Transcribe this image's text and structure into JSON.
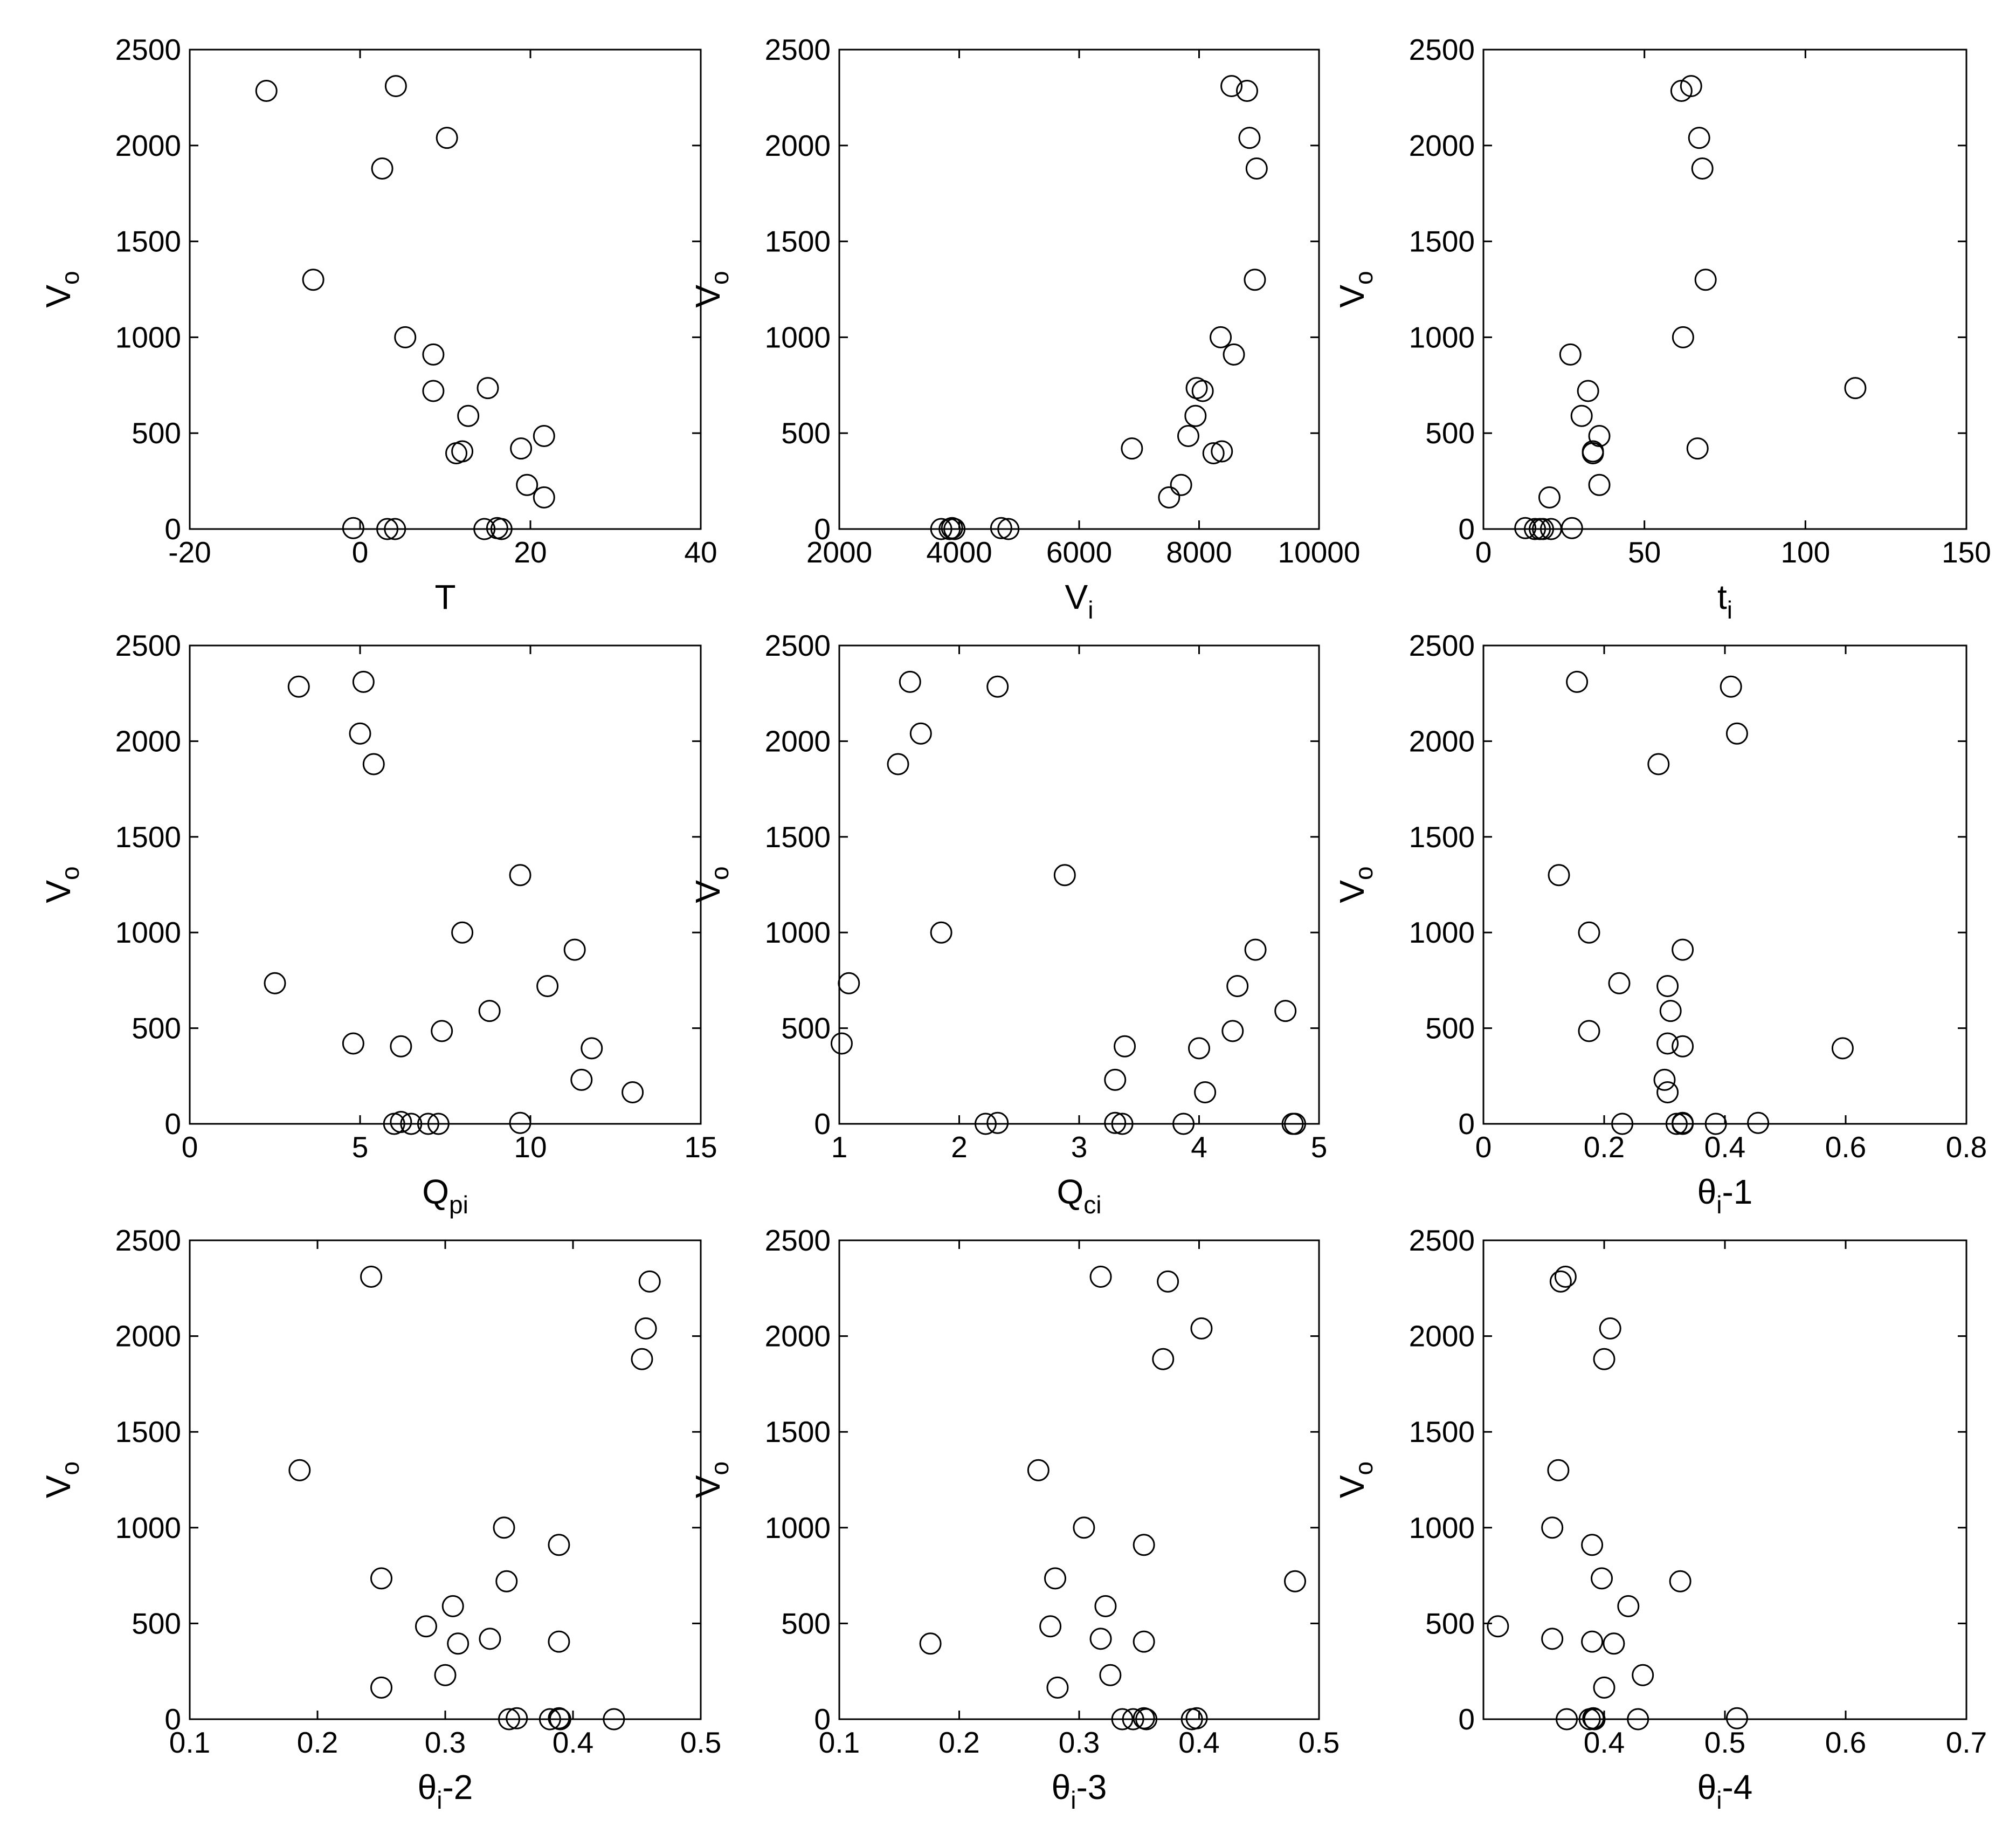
{
  "chart_data": [
    {
      "type": "scatter",
      "xlabel": "T",
      "xlabel_sub": "",
      "xlabel_suffix": "",
      "ylabel": "V",
      "ylabel_sub": "o",
      "xlim": [
        -20,
        40
      ],
      "xticks": [
        "-20",
        "0",
        "20",
        "40"
      ],
      "ylim": [
        0,
        2500
      ],
      "yticks": [
        "0",
        "500",
        "1000",
        "1500",
        "2000",
        "2500"
      ],
      "marker": "open-circle",
      "grid": false,
      "points": [
        [
          -11,
          2285
        ],
        [
          4.2,
          2310
        ],
        [
          10.2,
          2040
        ],
        [
          2.6,
          1880
        ],
        [
          -5.5,
          1300
        ],
        [
          5.3,
          1000
        ],
        [
          8.6,
          910
        ],
        [
          8.6,
          720
        ],
        [
          15,
          735
        ],
        [
          12.7,
          590
        ],
        [
          11.3,
          395
        ],
        [
          12,
          405
        ],
        [
          18.9,
          420
        ],
        [
          21.6,
          485
        ],
        [
          19.6,
          230
        ],
        [
          21.6,
          165
        ],
        [
          -0.8,
          5
        ],
        [
          3.2,
          0
        ],
        [
          4.1,
          0
        ],
        [
          14.6,
          0
        ],
        [
          16.1,
          5
        ],
        [
          16.6,
          0
        ]
      ]
    },
    {
      "type": "scatter",
      "xlabel": "V",
      "xlabel_sub": "i",
      "xlabel_suffix": "",
      "ylabel": "V",
      "ylabel_sub": "o",
      "xlim": [
        2000,
        10000
      ],
      "xticks": [
        "2000",
        "4000",
        "6000",
        "8000",
        "10000"
      ],
      "ylim": [
        0,
        2500
      ],
      "yticks": [
        "0",
        "500",
        "1000",
        "1500",
        "2000",
        "2500"
      ],
      "marker": "open-circle",
      "grid": false,
      "points": [
        [
          8540,
          2310
        ],
        [
          8800,
          2285
        ],
        [
          8840,
          2040
        ],
        [
          8960,
          1880
        ],
        [
          8930,
          1300
        ],
        [
          8360,
          1000
        ],
        [
          8580,
          910
        ],
        [
          7960,
          735
        ],
        [
          8060,
          720
        ],
        [
          7940,
          590
        ],
        [
          7820,
          485
        ],
        [
          6880,
          420
        ],
        [
          8380,
          405
        ],
        [
          8240,
          395
        ],
        [
          7700,
          230
        ],
        [
          7500,
          165
        ],
        [
          3700,
          0
        ],
        [
          3840,
          0
        ],
        [
          3880,
          5
        ],
        [
          3920,
          0
        ],
        [
          4700,
          5
        ],
        [
          4820,
          0
        ]
      ]
    },
    {
      "type": "scatter",
      "xlabel": "t",
      "xlabel_sub": "i",
      "xlabel_suffix": "",
      "ylabel": "V",
      "ylabel_sub": "o",
      "xlim": [
        0,
        150
      ],
      "xticks": [
        "0",
        "50",
        "100",
        "150"
      ],
      "ylim": [
        0,
        2500
      ],
      "yticks": [
        "0",
        "500",
        "1000",
        "1500",
        "2000",
        "2500"
      ],
      "marker": "open-circle",
      "grid": false,
      "points": [
        [
          64.5,
          2310
        ],
        [
          61.5,
          2285
        ],
        [
          67,
          2040
        ],
        [
          68,
          1880
        ],
        [
          69,
          1300
        ],
        [
          62,
          1000
        ],
        [
          27,
          910
        ],
        [
          32.5,
          720
        ],
        [
          115.5,
          735
        ],
        [
          30.5,
          590
        ],
        [
          36,
          485
        ],
        [
          66.5,
          420
        ],
        [
          34,
          405
        ],
        [
          34,
          395
        ],
        [
          36,
          230
        ],
        [
          20.5,
          165
        ],
        [
          13,
          5
        ],
        [
          16,
          0
        ],
        [
          17.5,
          0
        ],
        [
          18.5,
          0
        ],
        [
          21,
          0
        ],
        [
          27.5,
          5
        ]
      ]
    },
    {
      "type": "scatter",
      "xlabel": "Q",
      "xlabel_sub": "pi",
      "xlabel_suffix": "",
      "ylabel": "V",
      "ylabel_sub": "o",
      "xlim": [
        0,
        15
      ],
      "xticks": [
        "0",
        "5",
        "10",
        "15"
      ],
      "ylim": [
        0,
        2500
      ],
      "yticks": [
        "0",
        "500",
        "1000",
        "1500",
        "2000",
        "2500"
      ],
      "marker": "open-circle",
      "grid": false,
      "points": [
        [
          3.2,
          2285
        ],
        [
          5.1,
          2310
        ],
        [
          5,
          2040
        ],
        [
          5.4,
          1880
        ],
        [
          9.7,
          1300
        ],
        [
          8,
          1000
        ],
        [
          11.3,
          910
        ],
        [
          10.5,
          720
        ],
        [
          2.5,
          735
        ],
        [
          8.8,
          590
        ],
        [
          7.4,
          485
        ],
        [
          4.8,
          420
        ],
        [
          6.2,
          405
        ],
        [
          11.8,
          395
        ],
        [
          11.5,
          230
        ],
        [
          13,
          165
        ],
        [
          6,
          0
        ],
        [
          6.2,
          10
        ],
        [
          6.5,
          0
        ],
        [
          7,
          0
        ],
        [
          7.3,
          0
        ],
        [
          9.7,
          5
        ]
      ]
    },
    {
      "type": "scatter",
      "xlabel": "Q",
      "xlabel_sub": "ci",
      "xlabel_suffix": "",
      "ylabel": "V",
      "ylabel_sub": "o",
      "xlim": [
        1,
        5
      ],
      "xticks": [
        "1",
        "2",
        "3",
        "4",
        "5"
      ],
      "ylim": [
        0,
        2500
      ],
      "yticks": [
        "0",
        "500",
        "1000",
        "1500",
        "2000",
        "2500"
      ],
      "marker": "open-circle",
      "grid": false,
      "points": [
        [
          1.59,
          2310
        ],
        [
          2.32,
          2285
        ],
        [
          1.68,
          2040
        ],
        [
          1.49,
          1880
        ],
        [
          2.88,
          1300
        ],
        [
          1.85,
          1000
        ],
        [
          4.47,
          910
        ],
        [
          4.32,
          720
        ],
        [
          1.08,
          735
        ],
        [
          4.72,
          590
        ],
        [
          4.28,
          485
        ],
        [
          1.02,
          420
        ],
        [
          3.38,
          405
        ],
        [
          4,
          395
        ],
        [
          3.3,
          230
        ],
        [
          4.05,
          165
        ],
        [
          2.22,
          0
        ],
        [
          2.32,
          5
        ],
        [
          3.3,
          5
        ],
        [
          3.36,
          0
        ],
        [
          3.87,
          0
        ],
        [
          4.78,
          0
        ],
        [
          4.8,
          0
        ]
      ]
    },
    {
      "type": "scatter",
      "xlabel": "θ",
      "xlabel_sub": "i",
      "xlabel_suffix": "-1",
      "ylabel": "V",
      "ylabel_sub": "o",
      "xlim": [
        0,
        0.8
      ],
      "xticks": [
        "0",
        "0.2",
        "0.4",
        "0.6",
        "0.8"
      ],
      "ylim": [
        0,
        2500
      ],
      "yticks": [
        "0",
        "500",
        "1000",
        "1500",
        "2000",
        "2500"
      ],
      "marker": "open-circle",
      "grid": false,
      "points": [
        [
          0.155,
          2310
        ],
        [
          0.41,
          2285
        ],
        [
          0.42,
          2040
        ],
        [
          0.29,
          1880
        ],
        [
          0.125,
          1300
        ],
        [
          0.175,
          1000
        ],
        [
          0.33,
          910
        ],
        [
          0.305,
          720
        ],
        [
          0.225,
          735
        ],
        [
          0.31,
          590
        ],
        [
          0.175,
          485
        ],
        [
          0.305,
          420
        ],
        [
          0.33,
          405
        ],
        [
          0.595,
          395
        ],
        [
          0.3,
          230
        ],
        [
          0.305,
          165
        ],
        [
          0.23,
          0
        ],
        [
          0.32,
          0
        ],
        [
          0.33,
          5
        ],
        [
          0.33,
          0
        ],
        [
          0.385,
          0
        ],
        [
          0.455,
          5
        ]
      ]
    },
    {
      "type": "scatter",
      "xlabel": "θ",
      "xlabel_sub": "i",
      "xlabel_suffix": "-2",
      "ylabel": "V",
      "ylabel_sub": "o",
      "xlim": [
        0.1,
        0.5
      ],
      "xticks": [
        "0.1",
        "0.2",
        "0.3",
        "0.4",
        "0.5"
      ],
      "ylim": [
        0,
        2500
      ],
      "yticks": [
        "0",
        "500",
        "1000",
        "1500",
        "2000",
        "2500"
      ],
      "marker": "open-circle",
      "grid": false,
      "points": [
        [
          0.242,
          2310
        ],
        [
          0.46,
          2285
        ],
        [
          0.457,
          2040
        ],
        [
          0.454,
          1880
        ],
        [
          0.186,
          1300
        ],
        [
          0.346,
          1000
        ],
        [
          0.389,
          910
        ],
        [
          0.348,
          720
        ],
        [
          0.25,
          735
        ],
        [
          0.306,
          590
        ],
        [
          0.285,
          485
        ],
        [
          0.335,
          420
        ],
        [
          0.389,
          405
        ],
        [
          0.31,
          395
        ],
        [
          0.3,
          230
        ],
        [
          0.25,
          165
        ],
        [
          0.35,
          0
        ],
        [
          0.356,
          5
        ],
        [
          0.382,
          0
        ],
        [
          0.389,
          5
        ],
        [
          0.39,
          0
        ],
        [
          0.432,
          0
        ]
      ]
    },
    {
      "type": "scatter",
      "xlabel": "θ",
      "xlabel_sub": "i",
      "xlabel_suffix": "-3",
      "ylabel": "V",
      "ylabel_sub": "o",
      "xlim": [
        0.1,
        0.5
      ],
      "xticks": [
        "0.1",
        "0.2",
        "0.3",
        "0.4",
        "0.5"
      ],
      "ylim": [
        0,
        2500
      ],
      "yticks": [
        "0",
        "500",
        "1000",
        "1500",
        "2000",
        "2500"
      ],
      "marker": "open-circle",
      "grid": false,
      "points": [
        [
          0.318,
          2310
        ],
        [
          0.374,
          2285
        ],
        [
          0.402,
          2040
        ],
        [
          0.37,
          1880
        ],
        [
          0.266,
          1300
        ],
        [
          0.304,
          1000
        ],
        [
          0.354,
          910
        ],
        [
          0.48,
          720
        ],
        [
          0.28,
          735
        ],
        [
          0.322,
          590
        ],
        [
          0.276,
          485
        ],
        [
          0.318,
          420
        ],
        [
          0.354,
          405
        ],
        [
          0.176,
          395
        ],
        [
          0.326,
          230
        ],
        [
          0.282,
          165
        ],
        [
          0.336,
          0
        ],
        [
          0.345,
          0
        ],
        [
          0.354,
          5
        ],
        [
          0.356,
          0
        ],
        [
          0.394,
          0
        ],
        [
          0.398,
          5
        ]
      ]
    },
    {
      "type": "scatter",
      "xlabel": "θ",
      "xlabel_sub": "i",
      "xlabel_suffix": "-4",
      "ylabel": "V",
      "ylabel_sub": "o",
      "xlim": [
        0.3,
        0.7
      ],
      "xticks": [
        "0.4",
        "0.5",
        "0.6",
        "0.7"
      ],
      "ylim": [
        0,
        2500
      ],
      "yticks": [
        "0",
        "500",
        "1000",
        "1500",
        "2000",
        "2500"
      ],
      "marker": "open-circle",
      "grid": false,
      "points": [
        [
          0.368,
          2310
        ],
        [
          0.364,
          2285
        ],
        [
          0.405,
          2040
        ],
        [
          0.4,
          1880
        ],
        [
          0.362,
          1300
        ],
        [
          0.357,
          1000
        ],
        [
          0.39,
          910
        ],
        [
          0.463,
          720
        ],
        [
          0.398,
          735
        ],
        [
          0.42,
          590
        ],
        [
          0.312,
          485
        ],
        [
          0.357,
          420
        ],
        [
          0.39,
          405
        ],
        [
          0.408,
          395
        ],
        [
          0.432,
          230
        ],
        [
          0.4,
          165
        ],
        [
          0.369,
          0
        ],
        [
          0.388,
          0
        ],
        [
          0.391,
          5
        ],
        [
          0.392,
          0
        ],
        [
          0.428,
          0
        ],
        [
          0.51,
          5
        ]
      ]
    }
  ]
}
